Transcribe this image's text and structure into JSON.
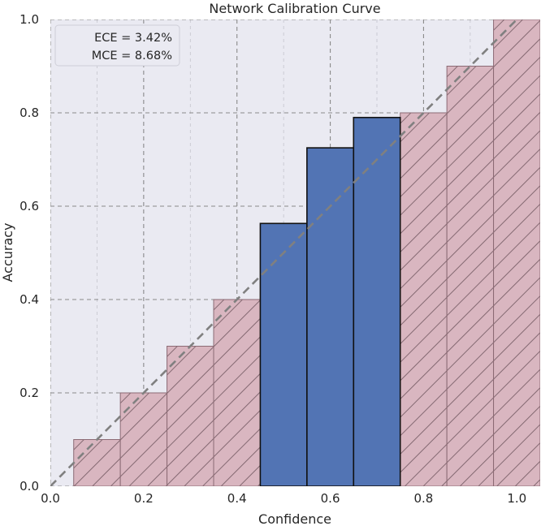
{
  "chart_data": {
    "type": "bar",
    "title": "Network Calibration Curve",
    "xlabel": "Confidence",
    "ylabel": "Accuracy",
    "xlim": [
      0.0,
      1.05
    ],
    "ylim": [
      0.0,
      1.0
    ],
    "xticks": [
      "0.0",
      "0.2",
      "0.4",
      "0.6",
      "0.8",
      "1.0"
    ],
    "yticks": [
      "0.0",
      "0.2",
      "0.4",
      "0.6",
      "0.8",
      "1.0"
    ],
    "grid": true,
    "bin_width": 0.1,
    "expected": {
      "style": "hatched",
      "color": "#d9b6c0",
      "bins": [
        {
          "center": 0.1,
          "value": 0.1
        },
        {
          "center": 0.2,
          "value": 0.2
        },
        {
          "center": 0.3,
          "value": 0.3
        },
        {
          "center": 0.4,
          "value": 0.4
        },
        {
          "center": 0.5,
          "value": 0.5
        },
        {
          "center": 0.6,
          "value": 0.6
        },
        {
          "center": 0.7,
          "value": 0.7
        },
        {
          "center": 0.8,
          "value": 0.8
        },
        {
          "center": 0.9,
          "value": 0.9
        },
        {
          "center": 1.0,
          "value": 1.0
        }
      ]
    },
    "observed": {
      "color": "#5274b4",
      "bins": [
        {
          "center": 0.5,
          "value": 0.563
        },
        {
          "center": 0.6,
          "value": 0.725
        },
        {
          "center": 0.7,
          "value": 0.79
        }
      ]
    },
    "diagonal": {
      "from": [
        0.0,
        0.0
      ],
      "to": [
        1.05,
        1.05
      ],
      "color": "#808080",
      "style": "dashed"
    },
    "annotations": [
      "ECE = 3.42%",
      "MCE = 8.68%"
    ],
    "annotation_placement": "top-left"
  }
}
